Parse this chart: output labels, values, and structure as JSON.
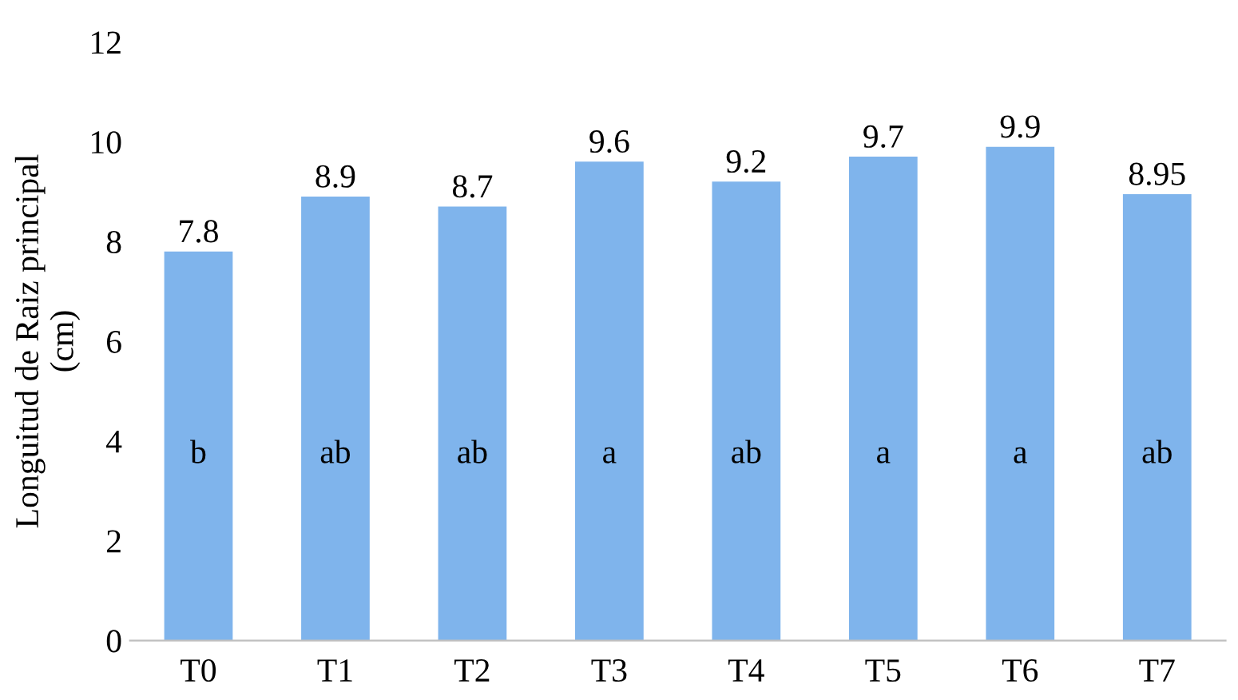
{
  "chart_data": {
    "type": "bar",
    "ylabel": "Longuitud de Raiz principal\n(cm)",
    "categories": [
      "T0",
      "T1",
      "T2",
      "T3",
      "T4",
      "T5",
      "T6",
      "T7"
    ],
    "values": [
      7.8,
      8.9,
      8.7,
      9.6,
      9.2,
      9.7,
      9.9,
      8.95
    ],
    "color": "#7fb4ec",
    "ylim": [
      0,
      12
    ],
    "yticks": [
      0,
      2,
      4,
      6,
      8,
      10,
      12
    ],
    "grid": false,
    "data_labels": true,
    "annotations": [
      "b",
      "ab",
      "ab",
      "a",
      "ab",
      "a",
      "a",
      "ab"
    ]
  }
}
